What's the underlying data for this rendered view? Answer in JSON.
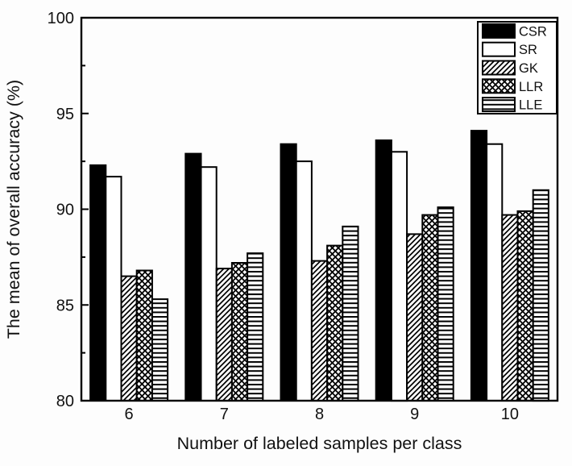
{
  "figure": {
    "background": "#fdfdfd",
    "ink_color": "#000000",
    "plot_background": "#ffffff"
  },
  "chart_data": {
    "type": "bar",
    "title": "",
    "xlabel": "Number of labeled samples per class",
    "ylabel": "The mean of overall accuracy (%)",
    "categories": [
      "6",
      "7",
      "8",
      "9",
      "10"
    ],
    "series": [
      {
        "name": "CSR",
        "pattern": "solid-black",
        "values": [
          92.3,
          92.9,
          93.4,
          93.6,
          94.1
        ]
      },
      {
        "name": "SR",
        "pattern": "white",
        "values": [
          91.7,
          92.2,
          92.5,
          93.0,
          93.4
        ]
      },
      {
        "name": "GK",
        "pattern": "diagonal-hatch",
        "values": [
          86.5,
          86.9,
          87.3,
          88.7,
          89.7
        ]
      },
      {
        "name": "LLR",
        "pattern": "crosshatch",
        "values": [
          86.8,
          87.2,
          88.1,
          89.7,
          89.9
        ]
      },
      {
        "name": "LLE",
        "pattern": "horizontal-lines",
        "values": [
          85.3,
          87.7,
          89.1,
          90.1,
          91.0
        ]
      }
    ],
    "ylim": [
      80,
      100
    ],
    "y_major_step": 5,
    "y_minor_step": 2.5,
    "y_tick_labels": [
      "80",
      "85",
      "90",
      "95",
      "100"
    ],
    "grid": false,
    "legend_position": "top-right",
    "legend_entries": [
      "CSR",
      "SR",
      "GK",
      "LLR",
      "LLE"
    ]
  }
}
